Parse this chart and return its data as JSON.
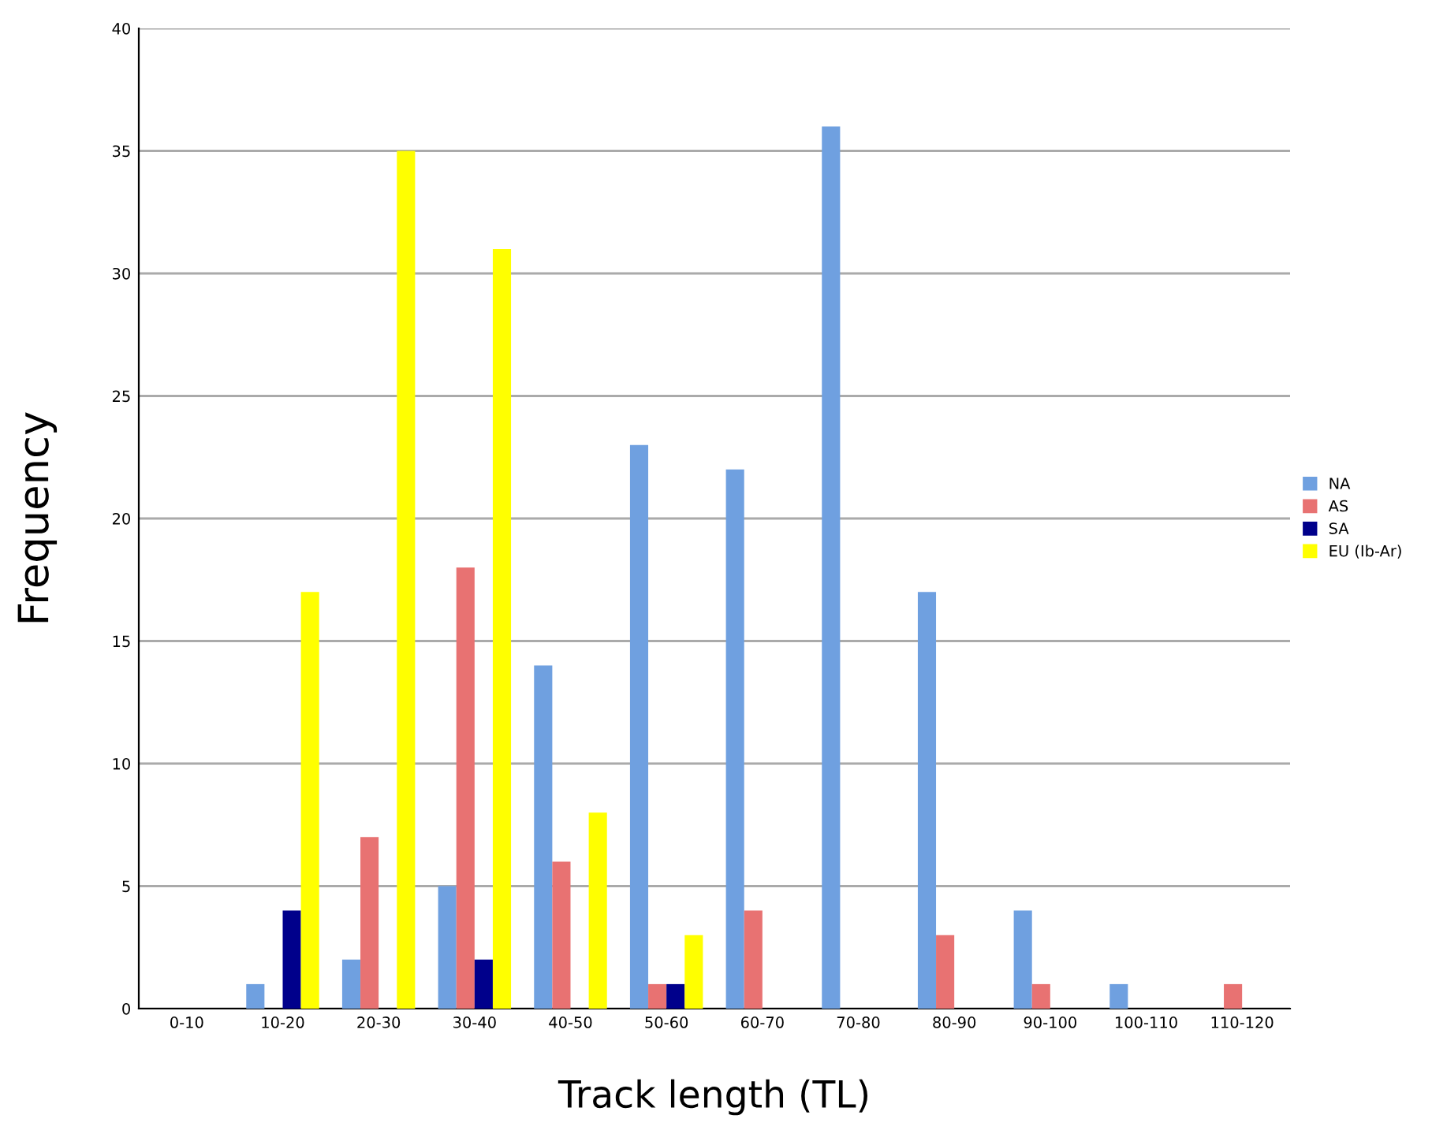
{
  "chart_data": {
    "type": "bar",
    "xlabel": "Track length (TL)",
    "ylabel": "Frequency",
    "categories": [
      "0-10",
      "10-20",
      "20-30",
      "30-40",
      "40-50",
      "50-60",
      "60-70",
      "70-80",
      "80-90",
      "90-100",
      "100-110",
      "110-120"
    ],
    "series": [
      {
        "name": "NA",
        "color": "#6fa0e0",
        "values": [
          0,
          1,
          2,
          5,
          14,
          23,
          22,
          36,
          17,
          4,
          1,
          0
        ]
      },
      {
        "name": "AS",
        "color": "#e87272",
        "values": [
          0,
          0,
          7,
          18,
          6,
          1,
          4,
          0,
          3,
          1,
          0,
          1
        ]
      },
      {
        "name": "SA",
        "color": "#00008b",
        "values": [
          0,
          4,
          0,
          2,
          0,
          1,
          0,
          0,
          0,
          0,
          0,
          0
        ]
      },
      {
        "name": "EU (Ib-Ar)",
        "color": "#ffff00",
        "values": [
          0,
          17,
          35,
          31,
          8,
          3,
          0,
          0,
          0,
          0,
          0,
          0
        ]
      }
    ],
    "ylim": [
      0,
      40
    ],
    "yticks": [
      0,
      5,
      10,
      15,
      20,
      25,
      30,
      35,
      40
    ],
    "grid": "y",
    "legend": "right"
  }
}
